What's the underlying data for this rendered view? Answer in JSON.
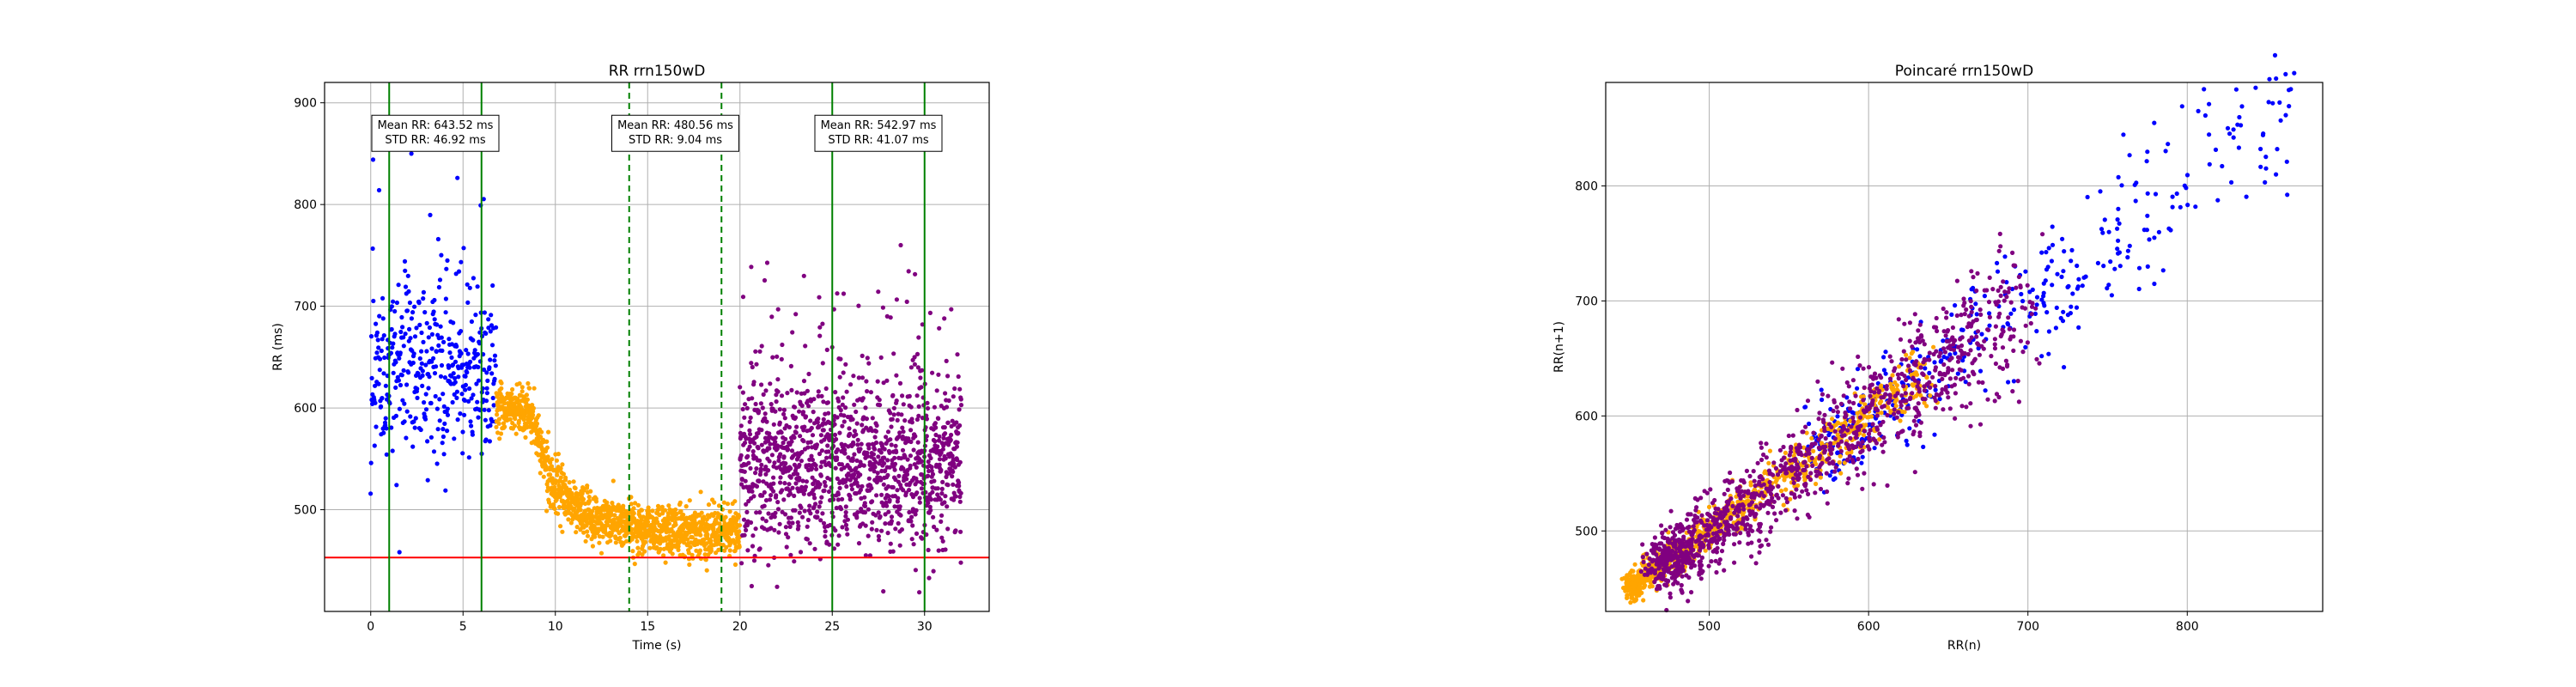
{
  "chart_data": [
    {
      "type": "scatter",
      "title": "RR rrn150wD",
      "xlabel": "Time (s)",
      "ylabel": "RR (ms)",
      "xlim": [
        -2.5,
        33.5
      ],
      "ylim": [
        400,
        920
      ],
      "xticks": [
        0,
        5,
        10,
        15,
        20,
        25,
        30
      ],
      "yticks": [
        500,
        600,
        700,
        800,
        900
      ],
      "grid": true,
      "series": [
        {
          "color": "#0000ff",
          "approx_count": 420,
          "x_range": [
            0,
            6.8
          ],
          "y_center": 640,
          "y_spread": 45
        },
        {
          "color": "#ffa500",
          "approx_count": 1300,
          "x_range": [
            6.8,
            20
          ],
          "trend": [
            [
              6.8,
              600
            ],
            [
              8.5,
              600
            ],
            [
              10,
              520
            ],
            [
              12,
              490
            ],
            [
              16,
              480
            ],
            [
              20,
              478
            ]
          ],
          "y_spread": 12
        },
        {
          "color": "#800080",
          "approx_count": 1300,
          "x_range": [
            20,
            32
          ],
          "y_center": 543,
          "y_spread": 41
        }
      ],
      "reference_lines": {
        "horizontal": {
          "y": 453,
          "color": "#ff0000"
        },
        "vertical_solid": {
          "x": [
            1,
            6,
            25,
            30
          ],
          "color": "#008000"
        },
        "vertical_dashed": {
          "x": [
            14,
            19
          ],
          "color": "#008000"
        }
      },
      "annotations": [
        {
          "x": 3.5,
          "y": 870,
          "lines": [
            "Mean RR: 643.52 ms",
            "STD RR: 46.92 ms"
          ]
        },
        {
          "x": 16.5,
          "y": 870,
          "lines": [
            "Mean RR: 480.56 ms",
            "STD RR: 9.04 ms"
          ]
        },
        {
          "x": 27.5,
          "y": 870,
          "lines": [
            "Mean RR: 542.97 ms",
            "STD RR: 41.07 ms"
          ]
        }
      ]
    },
    {
      "type": "scatter",
      "title": "Poincaré rrn150wD",
      "xlabel": "RR(n)",
      "ylabel": "RR(n+1)",
      "xlim": [
        435,
        885
      ],
      "ylim": [
        430,
        890
      ],
      "xticks": [
        500,
        600,
        700,
        800
      ],
      "yticks": [
        500,
        600,
        700,
        800
      ],
      "grid": true,
      "series": [
        {
          "color": "#0000ff",
          "approx_count": 400,
          "x_range": [
            570,
            870
          ],
          "diag_spread": 28
        },
        {
          "color": "#ffa500",
          "approx_count": 900,
          "x_range": [
            450,
            640
          ],
          "diag_spread": 10
        },
        {
          "color": "#800080",
          "approx_count": 1200,
          "x_range": [
            470,
            700
          ],
          "diag_spread": 22
        }
      ]
    }
  ]
}
